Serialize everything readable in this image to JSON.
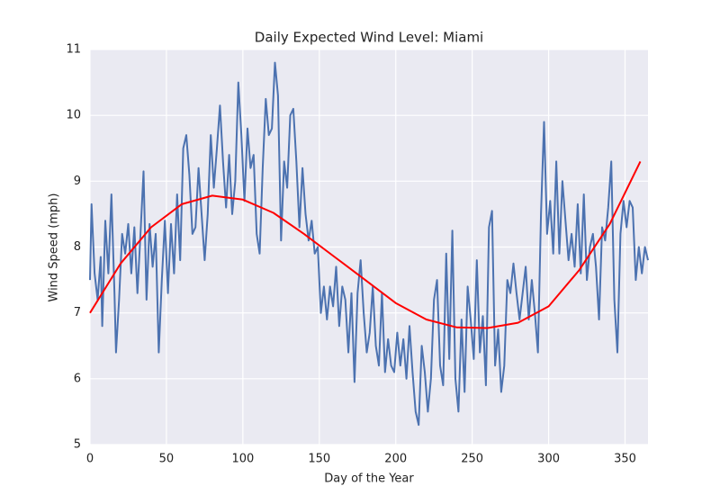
{
  "chart_data": {
    "type": "line",
    "title": "Daily Expected Wind Level: Miami",
    "xlabel": "Day of the Year",
    "ylabel": "Wind Speed (mph)",
    "xlim": [
      0,
      365
    ],
    "ylim": [
      5,
      11
    ],
    "xticks": [
      0,
      50,
      100,
      150,
      200,
      250,
      300,
      350
    ],
    "yticks": [
      5,
      6,
      7,
      8,
      9,
      10,
      11
    ],
    "grid": true,
    "series": [
      {
        "color": "#4c72b0",
        "x": [
          0,
          1,
          3,
          5,
          7,
          8,
          10,
          12,
          14,
          16,
          17,
          19,
          21,
          23,
          25,
          27,
          29,
          31,
          33,
          35,
          37,
          39,
          41,
          43,
          45,
          47,
          49,
          51,
          53,
          55,
          57,
          59,
          61,
          63,
          65,
          67,
          69,
          71,
          73,
          75,
          77,
          79,
          81,
          83,
          85,
          87,
          89,
          91,
          93,
          95,
          97,
          99,
          101,
          103,
          105,
          107,
          109,
          111,
          113,
          115,
          117,
          119,
          121,
          123,
          125,
          127,
          129,
          131,
          133,
          135,
          137,
          139,
          141,
          143,
          145,
          147,
          149,
          151,
          153,
          155,
          157,
          159,
          161,
          163,
          165,
          167,
          169,
          171,
          173,
          175,
          177,
          179,
          181,
          183,
          185,
          187,
          189,
          191,
          193,
          195,
          197,
          199,
          201,
          203,
          205,
          207,
          209,
          211,
          213,
          215,
          217,
          219,
          221,
          223,
          225,
          227,
          229,
          231,
          233,
          235,
          237,
          239,
          241,
          243,
          245,
          247,
          249,
          251,
          253,
          255,
          257,
          259,
          261,
          263,
          265,
          267,
          269,
          271,
          273,
          275,
          277,
          279,
          281,
          283,
          285,
          287,
          289,
          291,
          293,
          295,
          297,
          299,
          301,
          303,
          305,
          307,
          309,
          311,
          313,
          315,
          317,
          319,
          321,
          323,
          325,
          327,
          329,
          331,
          333,
          335,
          337,
          339,
          341,
          343,
          345,
          347,
          349,
          351,
          353,
          355,
          357,
          359,
          361,
          363,
          365
        ],
        "values": [
          7.5,
          8.65,
          7.6,
          7.2,
          7.85,
          6.8,
          8.4,
          7.6,
          8.8,
          7.3,
          6.4,
          7.2,
          8.2,
          7.9,
          8.35,
          7.6,
          8.3,
          7.3,
          8.2,
          9.15,
          7.2,
          8.35,
          7.7,
          8.2,
          6.4,
          7.5,
          8.4,
          7.3,
          8.35,
          7.6,
          8.8,
          7.8,
          9.5,
          9.7,
          9.1,
          8.2,
          8.3,
          9.2,
          8.5,
          7.8,
          8.5,
          9.7,
          8.9,
          9.5,
          10.15,
          9.3,
          8.6,
          9.4,
          8.5,
          9.0,
          10.5,
          9.7,
          8.7,
          9.8,
          9.2,
          9.4,
          8.2,
          7.9,
          9.2,
          10.25,
          9.7,
          9.8,
          10.8,
          10.3,
          8.1,
          9.3,
          8.9,
          10.0,
          10.1,
          9.3,
          8.3,
          9.2,
          8.5,
          8.1,
          8.4,
          7.9,
          8.0,
          7.0,
          7.4,
          6.9,
          7.4,
          7.1,
          7.7,
          6.8,
          7.4,
          7.2,
          6.4,
          7.3,
          5.95,
          7.3,
          7.8,
          7.0,
          6.4,
          6.7,
          7.4,
          6.5,
          6.2,
          7.3,
          6.1,
          6.6,
          6.2,
          6.1,
          6.7,
          6.2,
          6.6,
          6.0,
          6.8,
          6.1,
          5.5,
          5.3,
          6.5,
          6.1,
          5.5,
          6.0,
          7.2,
          7.5,
          6.2,
          5.9,
          7.9,
          6.3,
          8.25,
          6.0,
          5.5,
          6.9,
          5.8,
          7.4,
          6.9,
          6.3,
          7.8,
          6.4,
          6.95,
          5.9,
          8.3,
          8.55,
          6.2,
          6.75,
          5.8,
          6.2,
          7.5,
          7.3,
          7.75,
          7.3,
          6.9,
          7.3,
          7.7,
          6.9,
          7.5,
          7.0,
          6.4,
          8.5,
          9.9,
          8.2,
          8.7,
          7.9,
          9.3,
          7.9,
          9.0,
          8.4,
          7.8,
          8.2,
          7.7,
          8.65,
          7.6,
          8.8,
          7.5,
          8.0,
          8.2,
          7.7,
          6.9,
          8.3,
          8.1,
          8.6,
          9.3,
          7.2,
          6.4,
          8.2,
          8.7,
          8.3,
          8.7,
          8.6,
          7.5,
          8.0,
          7.6,
          8.0,
          7.8
        ]
      },
      {
        "color": "#ff0000",
        "x": [
          0,
          20,
          40,
          60,
          80,
          100,
          120,
          140,
          160,
          180,
          200,
          220,
          240,
          260,
          280,
          300,
          320,
          340,
          360
        ],
        "values": [
          7.0,
          7.75,
          8.3,
          8.65,
          8.78,
          8.72,
          8.52,
          8.2,
          7.85,
          7.5,
          7.15,
          6.9,
          6.78,
          6.77,
          6.85,
          7.1,
          7.65,
          8.35,
          9.3
        ]
      }
    ]
  }
}
